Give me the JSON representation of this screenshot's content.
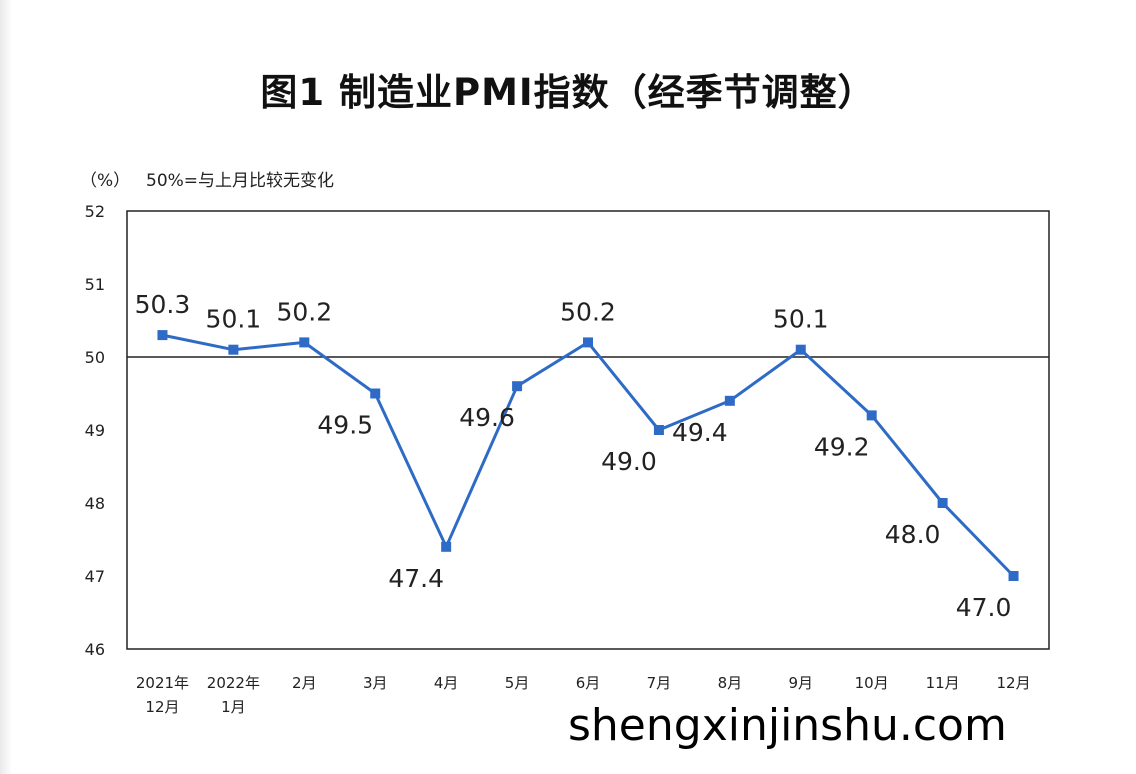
{
  "title": "图1  制造业PMI指数（经季节调整）",
  "unit_label": "（%）",
  "unit_note": "50%=与上月比较无变化",
  "watermark": "shengxinjinshu.com",
  "colors": {
    "line": "#2e6bc6",
    "axis": "#222222",
    "background": "#ffffff"
  },
  "chart_data": {
    "type": "line",
    "title": "图1  制造业PMI指数（经季节调整）",
    "xlabel": "",
    "ylabel": "（%）",
    "categories": [
      [
        "2021年",
        "12月"
      ],
      [
        "2022年",
        "1月"
      ],
      [
        "2月"
      ],
      [
        "3月"
      ],
      [
        "4月"
      ],
      [
        "5月"
      ],
      [
        "6月"
      ],
      [
        "7月"
      ],
      [
        "8月"
      ],
      [
        "9月"
      ],
      [
        "10月"
      ],
      [
        "11月"
      ],
      [
        "12月"
      ]
    ],
    "values": [
      50.3,
      50.1,
      50.2,
      49.5,
      47.4,
      49.6,
      50.2,
      49.0,
      49.4,
      50.1,
      49.2,
      48.0,
      47.0
    ],
    "data_labels": [
      "50.3",
      "50.1",
      "50.2",
      "49.5",
      "47.4",
      "49.6",
      "50.2",
      "49.0",
      "49.4",
      "50.1",
      "49.2",
      "48.0",
      "47.0"
    ],
    "label_positions": [
      "above",
      "above",
      "above",
      "below",
      "below",
      "below",
      "above",
      "below",
      "below",
      "above",
      "below",
      "below",
      "below"
    ],
    "ylim": [
      46,
      52
    ],
    "yticks": [
      "46",
      "47",
      "48",
      "49",
      "50",
      "51",
      "52"
    ],
    "reference_line": 50,
    "grid": false,
    "legend": "none"
  }
}
